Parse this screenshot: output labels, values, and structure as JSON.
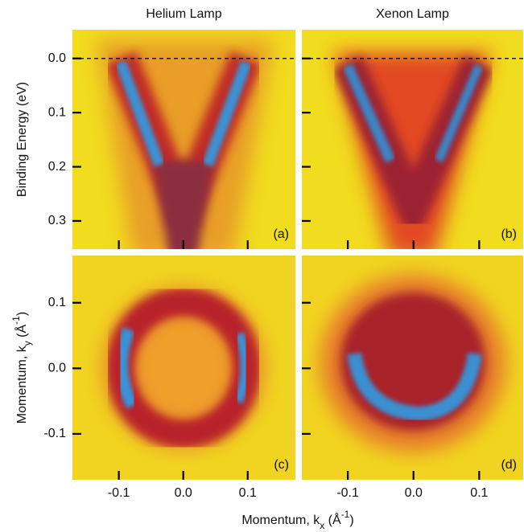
{
  "chart_data": [
    {
      "type": "heatmap",
      "title": "Helium Lamp",
      "ylabel": {
        "main": "Binding Energy (eV)"
      },
      "annotation": "(a)",
      "xlim": [
        -0.172,
        0.174
      ],
      "xticks": [
        -0.1,
        {
          "value": 0,
          "label": "0.0"
        },
        0.1
      ],
      "xticklabels": false,
      "ylim": [
        0.352,
        -0.053
      ],
      "yticks": [
        {
          "value": 0,
          "label": "0.0"
        },
        0.1,
        0.2,
        0.3
      ],
      "yticklabels": true,
      "hline": 0
    },
    {
      "type": "heatmap",
      "title": "Xenon Lamp",
      "annotation": "(b)",
      "xlim": [
        -0.17,
        0.167
      ],
      "xticks": [
        -0.1,
        {
          "value": 0,
          "label": "0.0"
        },
        0.1
      ],
      "xticklabels": false,
      "ylim": [
        0.352,
        -0.053
      ],
      "yticks": [
        {
          "value": 0,
          "label": "0.0"
        },
        0.1,
        0.2,
        0.3
      ],
      "yticklabels": false,
      "hline": 0
    },
    {
      "type": "heatmap",
      "ylabel": {
        "main": "Momentum, k",
        "sub": "y",
        "unit": " (Å",
        "sup": "-1",
        "close": ")"
      },
      "annotation": "(c)",
      "xlim": [
        -0.172,
        0.174
      ],
      "xticks": [
        -0.1,
        {
          "value": 0,
          "label": "0.0"
        },
        0.1
      ],
      "xticklabels": true,
      "ylim": [
        -0.17,
        0.172
      ],
      "yticks": [
        0.1,
        {
          "value": 0,
          "label": "0.0"
        },
        -0.1
      ],
      "yticklabels": true
    },
    {
      "type": "heatmap",
      "annotation": "(d)",
      "xlim": [
        -0.17,
        0.167
      ],
      "xticks": [
        -0.1,
        {
          "value": 0,
          "label": "0.0"
        },
        0.1
      ],
      "xticklabels": true,
      "ylim": [
        -0.17,
        0.172
      ],
      "yticks": [
        0.1,
        {
          "value": 0,
          "label": "0.0"
        },
        -0.1
      ],
      "yticklabels": false
    }
  ],
  "xlabel": {
    "main": "Momentum, k",
    "sub": "x",
    "unit": " (Å",
    "sup": "-1",
    "close": ")"
  }
}
